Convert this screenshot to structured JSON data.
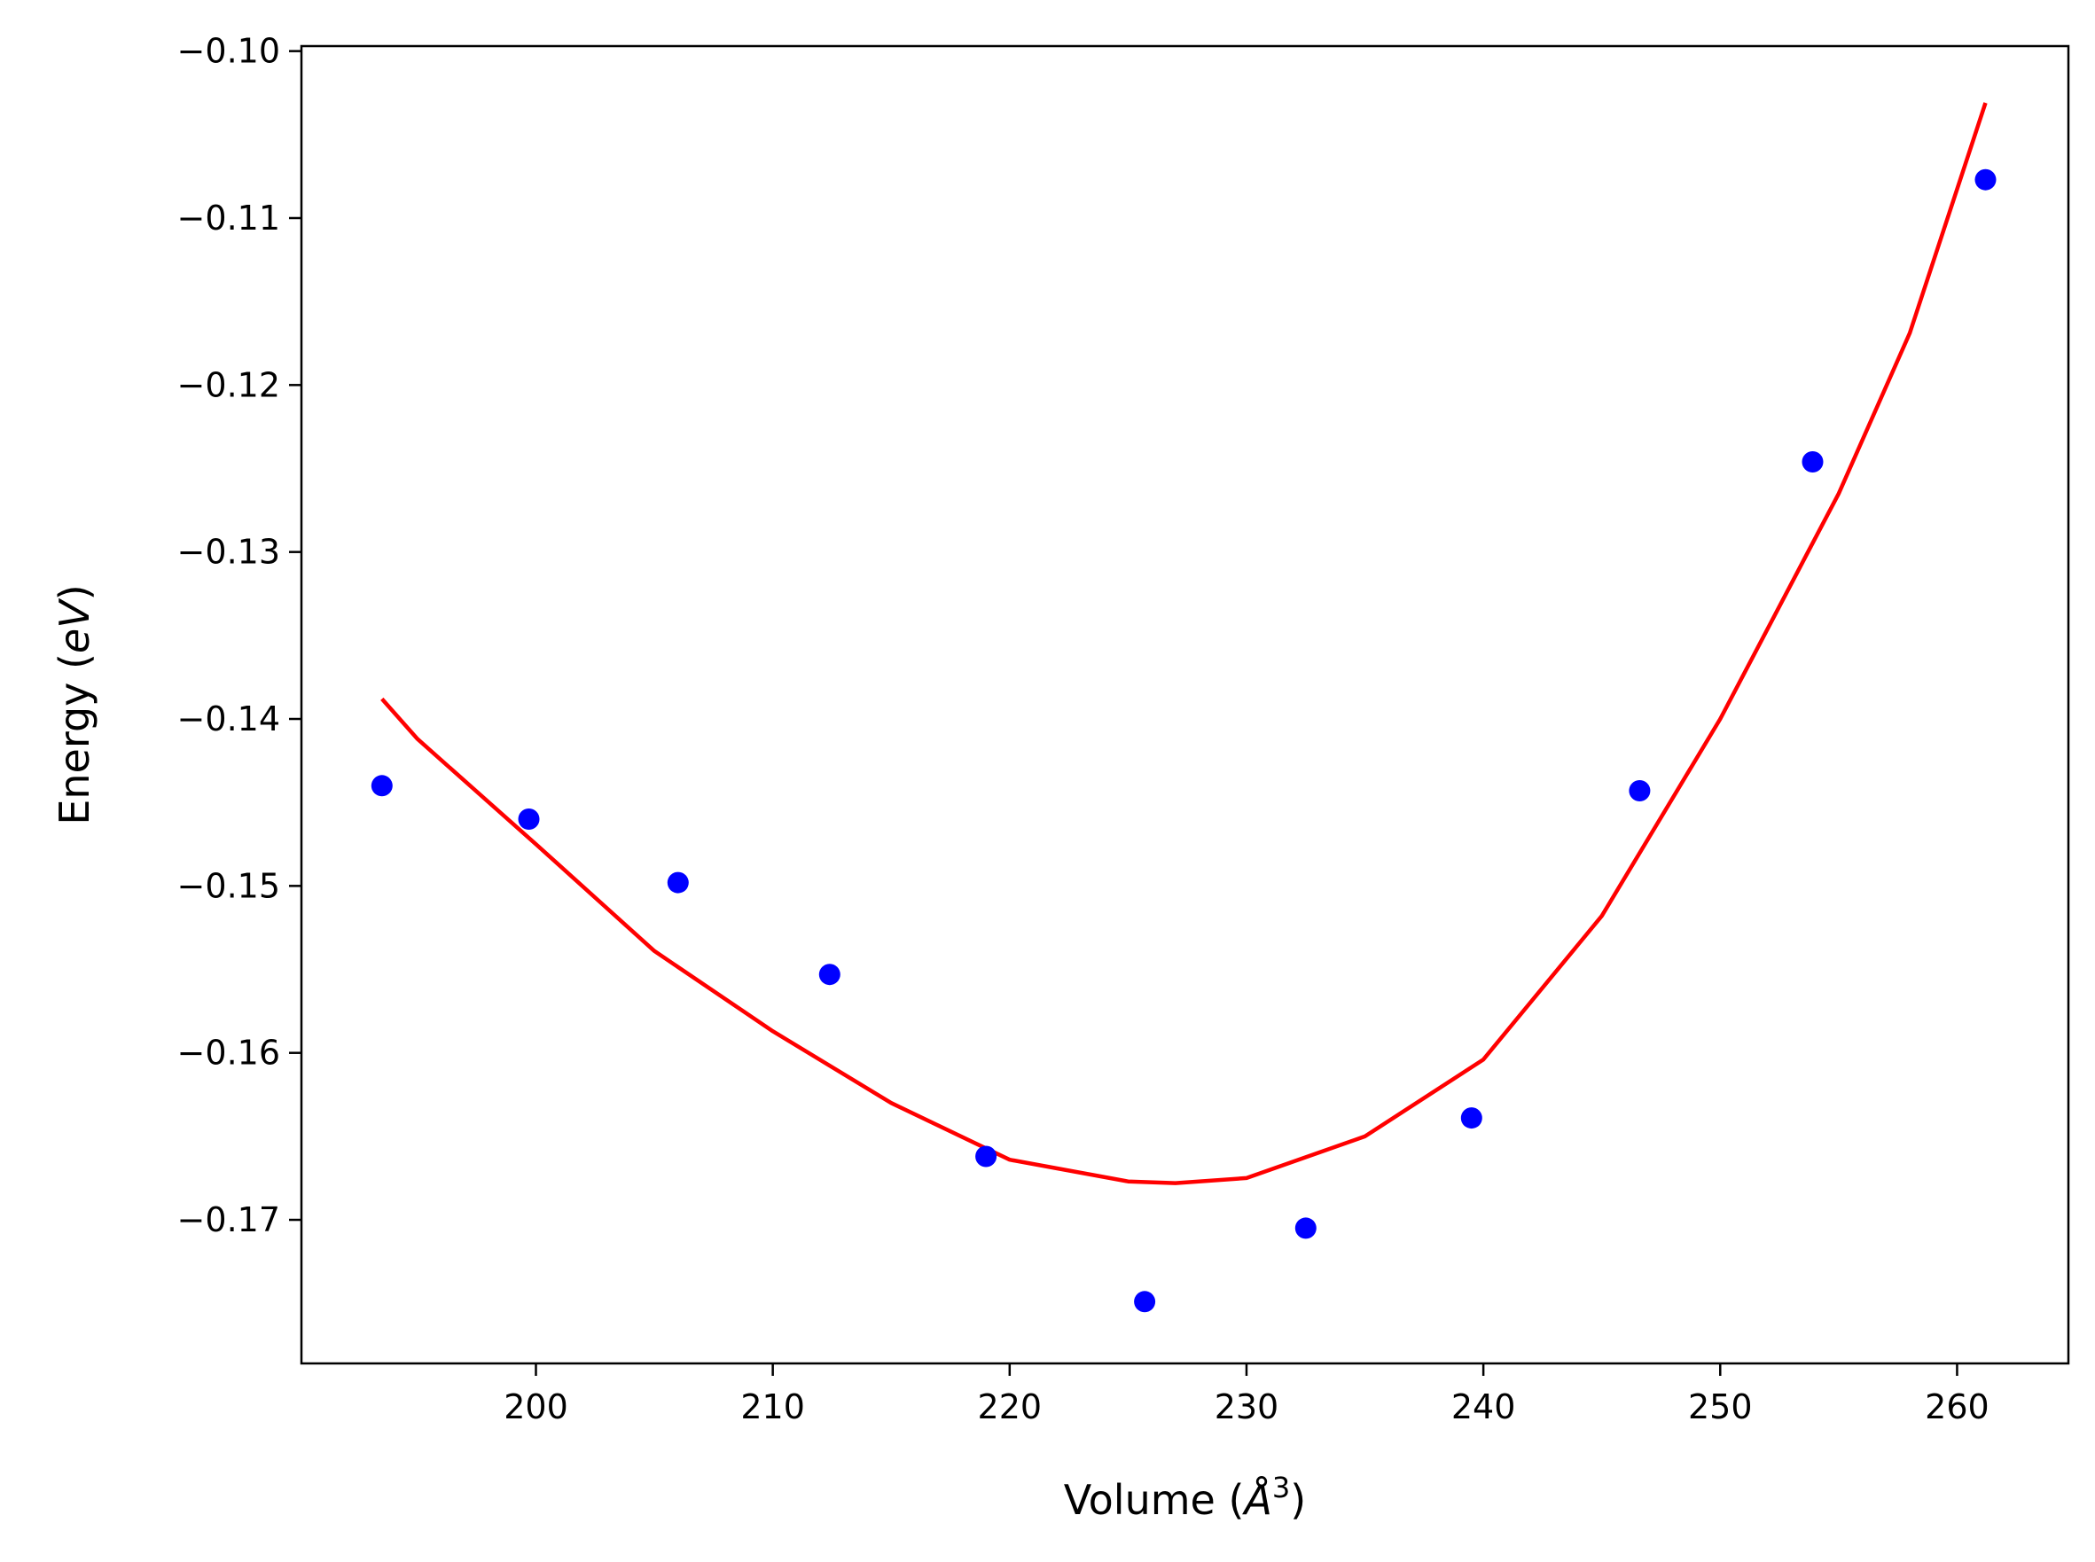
{
  "chart_data": {
    "type": "scatter",
    "xlabel": "Volume",
    "xlabel_unit_base": "Å",
    "xlabel_unit_exp": "3",
    "ylabel": "Energy",
    "ylabel_unit": "eV",
    "xlim": [
      190.1,
      264.7
    ],
    "ylim": [
      -0.1786,
      -0.0997
    ],
    "x_ticks": [
      200,
      210,
      220,
      230,
      240,
      250,
      260
    ],
    "x_tick_labels": [
      "200",
      "210",
      "220",
      "230",
      "240",
      "250",
      "260"
    ],
    "y_ticks": [
      -0.1,
      -0.11,
      -0.12,
      -0.13,
      -0.14,
      -0.15,
      -0.16,
      -0.17
    ],
    "y_tick_labels": [
      "−0.10",
      "−0.11",
      "−0.12",
      "−0.13",
      "−0.14",
      "−0.15",
      "−0.16",
      "−0.17"
    ],
    "grid": false,
    "series": [
      {
        "kind": "scatter",
        "color": "#0000ff",
        "x": [
          193.5,
          199.7,
          206.0,
          212.4,
          219.0,
          225.7,
          232.5,
          239.5,
          246.6,
          253.9,
          261.2
        ],
        "y": [
          -0.144,
          -0.146,
          -0.1498,
          -0.1553,
          -0.1662,
          -0.1749,
          -0.1705,
          -0.1639,
          -0.1443,
          -0.1246,
          -0.1077
        ]
      },
      {
        "kind": "line",
        "color": "#ff0000",
        "x": [
          193.5,
          195.0,
          200.0,
          205.0,
          210.0,
          215.0,
          220.0,
          225.0,
          227.0,
          230.0,
          235.0,
          240.0,
          245.0,
          250.0,
          255.0,
          258.0,
          261.2
        ],
        "y": [
          -0.1388,
          -0.1412,
          -0.1475,
          -0.1539,
          -0.1587,
          -0.163,
          -0.1664,
          -0.1677,
          -0.1678,
          -0.1675,
          -0.165,
          -0.1604,
          -0.1518,
          -0.14,
          -0.1265,
          -0.1169,
          -0.1031
        ]
      }
    ]
  }
}
